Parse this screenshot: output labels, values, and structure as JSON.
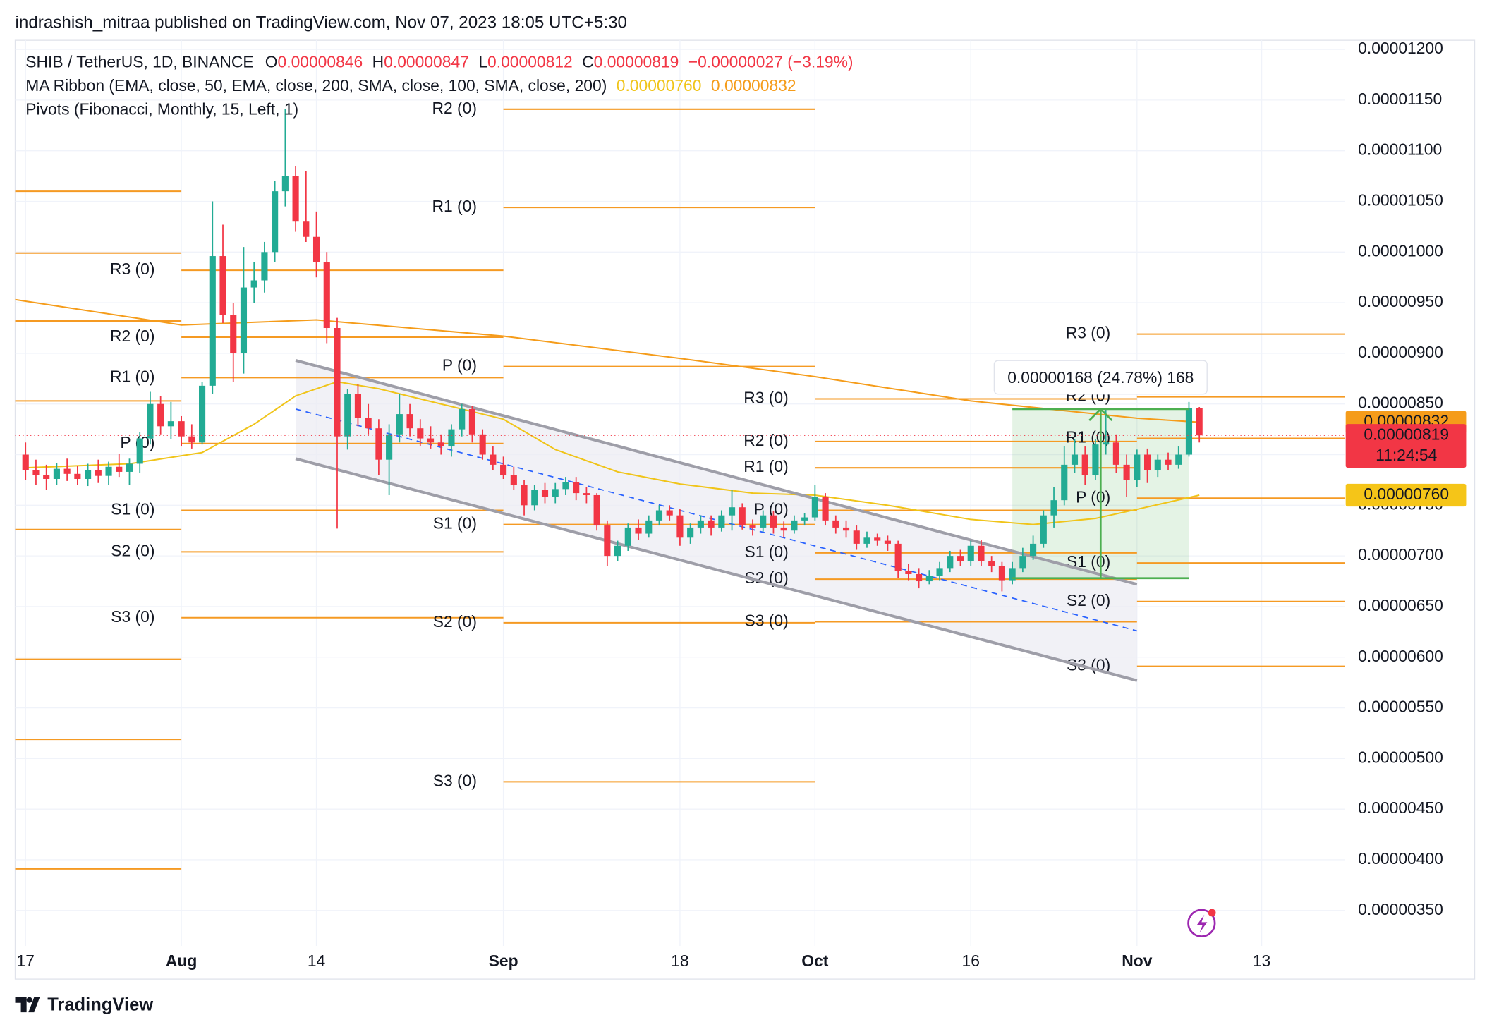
{
  "chart_data": {
    "type": "candlestick",
    "publisher": "indrashish_mitraa published on TradingView.com, Nov 07, 2023 18:05 UTC+5:30",
    "title": "SHIB / TetherUS, 1D, BINANCE",
    "legend": {
      "values": [
        {
          "key": "O",
          "label": "0.00000846"
        },
        {
          "key": "H",
          "label": "0.00000847"
        },
        {
          "key": "L",
          "label": "0.00000812"
        },
        {
          "key": "C",
          "label": "0.00000819"
        }
      ],
      "change": "−0.00000027 (−3.19%)",
      "ma_title": "MA Ribbon (EMA, close, 50, EMA, close, 200, SMA, close, 100, SMA, close, 200)",
      "ma_values": [
        {
          "label": "0.00000760",
          "color": "#f0c419"
        },
        {
          "label": "0.00000832",
          "color": "#f59c1a"
        }
      ],
      "pivots_title": "Pivots (Fibonacci, Monthly, 15, Left, 1)"
    },
    "up_color": "#22ab94",
    "down_color": "#f23645",
    "x": [
      "Jul 17",
      "Jul 18",
      "Jul 19",
      "Jul 20",
      "Jul 21",
      "Jul 22",
      "Jul 23",
      "Jul 24",
      "Jul 25",
      "Jul 26",
      "Jul 27",
      "Jul 28",
      "Jul 29",
      "Jul 30",
      "Jul 31",
      "Aug 1",
      "Aug 2",
      "Aug 3",
      "Aug 4",
      "Aug 5",
      "Aug 6",
      "Aug 7",
      "Aug 8",
      "Aug 9",
      "Aug 10",
      "Aug 11",
      "Aug 12",
      "Aug 13",
      "Aug 14",
      "Aug 15",
      "Aug 16",
      "Aug 17",
      "Aug 18",
      "Aug 19",
      "Aug 20",
      "Aug 21",
      "Aug 22",
      "Aug 23",
      "Aug 24",
      "Aug 25",
      "Aug 26",
      "Aug 27",
      "Aug 28",
      "Aug 29",
      "Aug 30",
      "Aug 31",
      "Sep 1",
      "Sep 2",
      "Sep 3",
      "Sep 4",
      "Sep 5",
      "Sep 6",
      "Sep 7",
      "Sep 8",
      "Sep 9",
      "Sep 10",
      "Sep 11",
      "Sep 12",
      "Sep 13",
      "Sep 14",
      "Sep 15",
      "Sep 16",
      "Sep 17",
      "Sep 18",
      "Sep 19",
      "Sep 20",
      "Sep 21",
      "Sep 22",
      "Sep 23",
      "Sep 24",
      "Sep 25",
      "Sep 26",
      "Sep 27",
      "Sep 28",
      "Sep 29",
      "Sep 30",
      "Oct 1",
      "Oct 2",
      "Oct 3",
      "Oct 4",
      "Oct 5",
      "Oct 6",
      "Oct 7",
      "Oct 8",
      "Oct 9",
      "Oct 10",
      "Oct 11",
      "Oct 12",
      "Oct 13",
      "Oct 14",
      "Oct 15",
      "Oct 16",
      "Oct 17",
      "Oct 18",
      "Oct 19",
      "Oct 20",
      "Oct 21",
      "Oct 22",
      "Oct 23",
      "Oct 24",
      "Oct 25",
      "Oct 26",
      "Oct 27",
      "Oct 28",
      "Oct 29",
      "Oct 30",
      "Oct 31",
      "Nov 1",
      "Nov 2",
      "Nov 3",
      "Nov 4",
      "Nov 5",
      "Nov 6",
      "Nov 7"
    ],
    "open": [
      8e-06,
      7.85e-06,
      7.8e-06,
      7.76e-06,
      7.86e-06,
      7.81e-06,
      7.76e-06,
      7.85e-06,
      7.79e-06,
      7.88e-06,
      7.83e-06,
      7.91e-06,
      8.16e-06,
      8.5e-06,
      8.28e-06,
      8.33e-06,
      8.18e-06,
      8.12e-06,
      8.68e-06,
      9.96e-06,
      9.38e-06,
      9e-06,
      9.65e-06,
      9.72e-06,
      1e-05,
      1.06e-05,
      1.075e-05,
      1.03e-05,
      1.015e-05,
      9.9e-06,
      9.25e-06,
      8.18e-06,
      8.6e-06,
      8.36e-06,
      8.26e-06,
      7.95e-06,
      8.2e-06,
      8.4e-06,
      8.26e-06,
      8.16e-06,
      8.12e-06,
      8.08e-06,
      8.25e-06,
      8.45e-06,
      8.2e-06,
      8e-06,
      7.9e-06,
      7.8e-06,
      7.7e-06,
      7.5e-06,
      7.65e-06,
      7.58e-06,
      7.66e-06,
      7.73e-06,
      7.62e-06,
      7.6e-06,
      7.3e-06,
      7e-06,
      7.1e-06,
      7.28e-06,
      7.22e-06,
      7.35e-06,
      7.45e-06,
      7.4e-06,
      7.18e-06,
      7.28e-06,
      7.35e-06,
      7.28e-06,
      7.4e-06,
      7.48e-06,
      7.3e-06,
      7.28e-06,
      7.4e-06,
      7.28e-06,
      7.25e-06,
      7.35e-06,
      7.38e-06,
      7.58e-06,
      7.35e-06,
      7.28e-06,
      7.25e-06,
      7.12e-06,
      7.18e-06,
      7.15e-06,
      7.12e-06,
      6.85e-06,
      6.82e-06,
      6.75e-06,
      6.8e-06,
      6.88e-06,
      7e-06,
      6.95e-06,
      7.1e-06,
      6.95e-06,
      6.9e-06,
      6.76e-06,
      6.88e-06,
      7e-06,
      7.12e-06,
      7.4e-06,
      7.55e-06,
      7.9e-06,
      8e-06,
      7.8e-06,
      8.1e-06,
      8.12e-06,
      7.9e-06,
      7.75e-06,
      8e-06,
      7.85e-06,
      7.95e-06,
      7.9e-06,
      8e-06,
      8.46e-06
    ],
    "high": [
      8.12e-06,
      7.95e-06,
      7.9e-06,
      7.92e-06,
      7.96e-06,
      7.89e-06,
      7.91e-06,
      7.95e-06,
      7.93e-06,
      8.01e-06,
      7.96e-06,
      8.22e-06,
      8.62e-06,
      8.58e-06,
      8.52e-06,
      8.38e-06,
      8.3e-06,
      8.72e-06,
      1.05e-05,
      1.027e-05,
      9.5e-06,
      1.005e-05,
      9.9e-06,
      1.01e-05,
      1.07e-05,
      1.141e-05,
      1.085e-05,
      1.08e-05,
      1.04e-05,
      1e-05,
      9.35e-06,
      8.65e-06,
      8.7e-06,
      8.5e-06,
      8.35e-06,
      8.3e-06,
      8.6e-06,
      8.5e-06,
      8.35e-06,
      8.28e-06,
      8.2e-06,
      8.3e-06,
      8.5e-06,
      8.48e-06,
      8.25e-06,
      8.08e-06,
      7.98e-06,
      7.88e-06,
      7.75e-06,
      7.7e-06,
      7.72e-06,
      7.72e-06,
      7.78e-06,
      7.78e-06,
      7.68e-06,
      7.62e-06,
      7.35e-06,
      7.15e-06,
      7.32e-06,
      7.36e-06,
      7.4e-06,
      7.5e-06,
      7.5e-06,
      7.46e-06,
      7.32e-06,
      7.4e-06,
      7.4e-06,
      7.45e-06,
      7.65e-06,
      7.52e-06,
      7.36e-06,
      7.45e-06,
      7.44e-06,
      7.34e-06,
      7.4e-06,
      7.42e-06,
      7.7e-06,
      7.62e-06,
      7.4e-06,
      7.35e-06,
      7.3e-06,
      7.24e-06,
      7.22e-06,
      7.2e-06,
      7.15e-06,
      6.92e-06,
      6.88e-06,
      6.86e-06,
      6.94e-06,
      7.05e-06,
      7.06e-06,
      7.15e-06,
      7.16e-06,
      7e-06,
      6.94e-06,
      6.94e-06,
      7.08e-06,
      7.2e-06,
      7.45e-06,
      7.68e-06,
      8.08e-06,
      8.15e-06,
      8.08e-06,
      8.15e-06,
      8.45e-06,
      8.2e-06,
      8e-06,
      8.05e-06,
      8.06e-06,
      8e-06,
      8.02e-06,
      8.08e-06,
      8.52e-06,
      8.47e-06
    ],
    "low": [
      7.75e-06,
      7.7e-06,
      7.65e-06,
      7.7e-06,
      7.74e-06,
      7.7e-06,
      7.69e-06,
      7.72e-06,
      7.7e-06,
      7.78e-06,
      7.7e-06,
      7.82e-06,
      8.1e-06,
      8.2e-06,
      8.15e-06,
      8.08e-06,
      8.06e-06,
      8.1e-06,
      8.6e-06,
      9.3e-06,
      8.72e-06,
      8.8e-06,
      9.5e-06,
      9.6e-06,
      9.9e-06,
      1.045e-05,
      1.02e-05,
      1.01e-05,
      9.75e-06,
      9.1e-06,
      7.27e-06,
      8.05e-06,
      8.28e-06,
      8.2e-06,
      7.8e-06,
      7.6e-06,
      8.12e-06,
      8.18e-06,
      8.08e-06,
      8.06e-06,
      8e-06,
      7.98e-06,
      8.18e-06,
      8.12e-06,
      7.95e-06,
      7.85e-06,
      7.76e-06,
      7.65e-06,
      7.4e-06,
      7.45e-06,
      7.52e-06,
      7.52e-06,
      7.6e-06,
      7.55e-06,
      7.52e-06,
      7.25e-06,
      6.9e-06,
      6.95e-06,
      7.05e-06,
      7.16e-06,
      7.18e-06,
      7.3e-06,
      7.35e-06,
      7.1e-06,
      7.12e-06,
      7.22e-06,
      7.2e-06,
      7.24e-06,
      7.25e-06,
      7.26e-06,
      7.2e-06,
      7.24e-06,
      7.22e-06,
      7.18e-06,
      7.22e-06,
      7.3e-06,
      7.35e-06,
      7.3e-06,
      7.22e-06,
      7.18e-06,
      7.06e-06,
      7.08e-06,
      7.1e-06,
      7.05e-06,
      6.78e-06,
      6.76e-06,
      6.68e-06,
      6.72e-06,
      6.76e-06,
      6.84e-06,
      6.9e-06,
      6.9e-06,
      6.9e-06,
      6.84e-06,
      6.65e-06,
      6.72e-06,
      6.84e-06,
      6.96e-06,
      7.08e-06,
      7.28e-06,
      7.5e-06,
      7.82e-06,
      7.7e-06,
      7.75e-06,
      8e-06,
      7.82e-06,
      7.58e-06,
      7.68e-06,
      7.72e-06,
      7.78e-06,
      7.85e-06,
      7.86e-06,
      7.98e-06,
      8.12e-06
    ],
    "close": [
      7.85e-06,
      7.8e-06,
      7.76e-06,
      7.86e-06,
      7.81e-06,
      7.76e-06,
      7.85e-06,
      7.79e-06,
      7.88e-06,
      7.83e-06,
      7.91e-06,
      8.16e-06,
      8.5e-06,
      8.28e-06,
      8.33e-06,
      8.18e-06,
      8.12e-06,
      8.68e-06,
      9.96e-06,
      9.38e-06,
      9e-06,
      9.65e-06,
      9.72e-06,
      1e-05,
      1.06e-05,
      1.075e-05,
      1.03e-05,
      1.015e-05,
      9.9e-06,
      9.25e-06,
      8.18e-06,
      8.6e-06,
      8.36e-06,
      8.26e-06,
      7.95e-06,
      8.2e-06,
      8.4e-06,
      8.26e-06,
      8.16e-06,
      8.12e-06,
      8.08e-06,
      8.25e-06,
      8.45e-06,
      8.2e-06,
      8e-06,
      7.9e-06,
      7.8e-06,
      7.7e-06,
      7.5e-06,
      7.65e-06,
      7.58e-06,
      7.66e-06,
      7.73e-06,
      7.62e-06,
      7.6e-06,
      7.3e-06,
      7e-06,
      7.1e-06,
      7.28e-06,
      7.22e-06,
      7.35e-06,
      7.45e-06,
      7.4e-06,
      7.18e-06,
      7.28e-06,
      7.35e-06,
      7.28e-06,
      7.4e-06,
      7.48e-06,
      7.3e-06,
      7.28e-06,
      7.4e-06,
      7.28e-06,
      7.25e-06,
      7.35e-06,
      7.38e-06,
      7.58e-06,
      7.35e-06,
      7.28e-06,
      7.25e-06,
      7.12e-06,
      7.18e-06,
      7.15e-06,
      7.12e-06,
      6.85e-06,
      6.82e-06,
      6.75e-06,
      6.8e-06,
      6.88e-06,
      7e-06,
      6.95e-06,
      7.1e-06,
      6.95e-06,
      6.9e-06,
      6.76e-06,
      6.88e-06,
      7e-06,
      7.12e-06,
      7.4e-06,
      7.55e-06,
      7.9e-06,
      8e-06,
      7.8e-06,
      8.1e-06,
      8.12e-06,
      7.9e-06,
      7.75e-06,
      8e-06,
      7.85e-06,
      7.95e-06,
      7.9e-06,
      8e-06,
      8.46e-06,
      8.19e-06
    ],
    "xlim": [
      "Jul 16",
      "Nov 21"
    ],
    "xticks": [
      {
        "value": "Jul 17",
        "label": "17"
      },
      {
        "value": "Aug 1",
        "label": "Aug"
      },
      {
        "value": "Aug 14",
        "label": "14"
      },
      {
        "value": "Sep 1",
        "label": "Sep"
      },
      {
        "value": "Sep 18",
        "label": "18"
      },
      {
        "value": "Oct 1",
        "label": "Oct"
      },
      {
        "value": "Oct 16",
        "label": "16"
      },
      {
        "value": "Nov 1",
        "label": "Nov"
      },
      {
        "value": "Nov 13",
        "label": "13"
      }
    ],
    "ylim": [
      3.15e-06,
      1.209e-05
    ],
    "yticks": [
      {
        "value": 3.5e-06,
        "label": "0.00000350"
      },
      {
        "value": 4e-06,
        "label": "0.00000400"
      },
      {
        "value": 4.5e-06,
        "label": "0.00000450"
      },
      {
        "value": 5e-06,
        "label": "0.00000500"
      },
      {
        "value": 5.5e-06,
        "label": "0.00000550"
      },
      {
        "value": 6e-06,
        "label": "0.00000600"
      },
      {
        "value": 6.5e-06,
        "label": "0.00000650"
      },
      {
        "value": 7e-06,
        "label": "0.00000700"
      },
      {
        "value": 7.5e-06,
        "label": "0.00000750"
      },
      {
        "value": 8e-06,
        "label": "0.00000800"
      },
      {
        "value": 8.5e-06,
        "label": "0.00000850"
      },
      {
        "value": 9e-06,
        "label": "0.00000900"
      },
      {
        "value": 9.5e-06,
        "label": "0.00000950"
      },
      {
        "value": 1e-05,
        "label": "0.00001000"
      },
      {
        "value": 1.05e-05,
        "label": "0.00001050"
      },
      {
        "value": 1.1e-05,
        "label": "0.00001100"
      },
      {
        "value": 1.15e-05,
        "label": "0.00001150"
      },
      {
        "value": 1.2e-05,
        "label": "0.00001200"
      }
    ],
    "grid": true,
    "ma_series": [
      {
        "color": "#f0c419",
        "x": [
          "Jul 17",
          "Jul 27",
          "Aug 3",
          "Aug 8",
          "Aug 12",
          "Aug 16",
          "Aug 20",
          "Aug 26",
          "Sep 1",
          "Sep 6",
          "Sep 12",
          "Sep 18",
          "Sep 25",
          "Oct 1",
          "Oct 8",
          "Oct 16",
          "Oct 22",
          "Oct 28",
          "Nov 1",
          "Nov 7"
        ],
        "values": [
          7.87e-06,
          7.91e-06,
          8.02e-06,
          8.3e-06,
          8.58e-06,
          8.72e-06,
          8.65e-06,
          8.5e-06,
          8.35e-06,
          8.05e-06,
          7.83e-06,
          7.71e-06,
          7.62e-06,
          7.6e-06,
          7.5e-06,
          7.36e-06,
          7.31e-06,
          7.37e-06,
          7.46e-06,
          7.6e-06
        ]
      },
      {
        "color": "#f59c1a",
        "x": [
          "Jul 16",
          "Aug 1",
          "Aug 14",
          "Sep 1",
          "Sep 18",
          "Oct 1",
          "Oct 16",
          "Nov 1",
          "Nov 7"
        ],
        "values": [
          9.53e-06,
          9.28e-06,
          9.33e-06,
          9.17e-06,
          8.95e-06,
          8.77e-06,
          8.53e-06,
          8.36e-06,
          8.32e-06
        ]
      }
    ],
    "pivots": {
      "color": "#f59a23",
      "label_color": "#f5a623",
      "periods": [
        {
          "from": "Jul 16",
          "to": "Aug 1",
          "levels": [
            {
              "value": 1.06e-05
            },
            {
              "value": 9.99e-06
            },
            {
              "value": 9.32e-06
            },
            {
              "value": 8.53e-06
            },
            {
              "value": 7.26e-06
            },
            {
              "value": 5.98e-06
            },
            {
              "value": 5.19e-06
            },
            {
              "value": 3.91e-06
            }
          ]
        },
        {
          "from": "Aug 1",
          "to": "Sep 1",
          "levels": [
            {
              "label": "R3 (0)",
              "value": 9.82e-06
            },
            {
              "label": "R2 (0)",
              "value": 9.16e-06
            },
            {
              "label": "R1 (0)",
              "value": 8.76e-06
            },
            {
              "label": "P (0)",
              "value": 8.11e-06
            },
            {
              "label": "S1 (0)",
              "value": 7.45e-06
            },
            {
              "label": "S2 (0)",
              "value": 7.04e-06
            },
            {
              "label": "S3 (0)",
              "value": 6.39e-06
            }
          ]
        },
        {
          "from": "Sep 1",
          "to": "Oct 1",
          "levels": [
            {
              "label": "R2 (0)",
              "value": 1.141e-05
            },
            {
              "label": "R1 (0)",
              "value": 1.044e-05
            },
            {
              "label": "P (0)",
              "value": 8.87e-06
            },
            {
              "label": "S1 (0)",
              "value": 7.31e-06
            },
            {
              "label": "S2 (0)",
              "value": 6.34e-06
            },
            {
              "label": "S3 (0)",
              "value": 4.77e-06
            }
          ]
        },
        {
          "from": "Oct 1",
          "to": "Nov 1",
          "levels": [
            {
              "label": "R3 (0)",
              "value": 8.55e-06
            },
            {
              "label": "R2 (0)",
              "value": 8.13e-06
            },
            {
              "label": "R1 (0)",
              "value": 7.87e-06
            },
            {
              "label": "P (0)",
              "value": 7.45e-06
            },
            {
              "label": "S1 (0)",
              "value": 7.03e-06
            },
            {
              "label": "S2 (0)",
              "value": 6.77e-06
            },
            {
              "label": "S3 (0)",
              "value": 6.35e-06
            }
          ]
        },
        {
          "from": "Nov 1",
          "to": "Nov 30",
          "levels": [
            {
              "label": "R3 (0)",
              "value": 9.19e-06
            },
            {
              "label": "R2 (0)",
              "value": 8.57e-06
            },
            {
              "label": "R1 (0)",
              "value": 8.16e-06
            },
            {
              "label": "P (0)",
              "value": 7.57e-06
            },
            {
              "label": "S1 (0)",
              "value": 6.93e-06
            },
            {
              "label": "S2 (0)",
              "value": 6.55e-06
            },
            {
              "label": "S3 (0)",
              "value": 5.91e-06
            }
          ]
        }
      ]
    },
    "channel": {
      "from": "Aug 12",
      "to": "Nov 1",
      "color": "#9e9ea8",
      "fill": "#ebebf2",
      "mid_color": "#2962ff",
      "upper": [
        8.93e-06,
        6.72e-06
      ],
      "lower": [
        7.96e-06,
        5.77e-06
      ],
      "mid": [
        8.45e-06,
        6.26e-06
      ]
    },
    "measure": {
      "from": "Oct 20",
      "to": "Nov 6",
      "low": 6.78e-06,
      "high": 8.45e-06,
      "label": "0.00000168 (24.78%) 168",
      "color": "#4caf50"
    },
    "price_tags": [
      {
        "value": 8.32e-06,
        "label": "0.00000832",
        "color": "#f59c1a",
        "text_color": "#131722"
      },
      {
        "value": 8.19e-06,
        "label": "0.00000819",
        "time": "11:24:54",
        "color": "#f23645",
        "text_color": "#ffffff"
      },
      {
        "value": 7.6e-06,
        "label": "0.00000760",
        "color": "#f5c518",
        "text_color": "#131722"
      }
    ],
    "footer": "TradingView"
  }
}
